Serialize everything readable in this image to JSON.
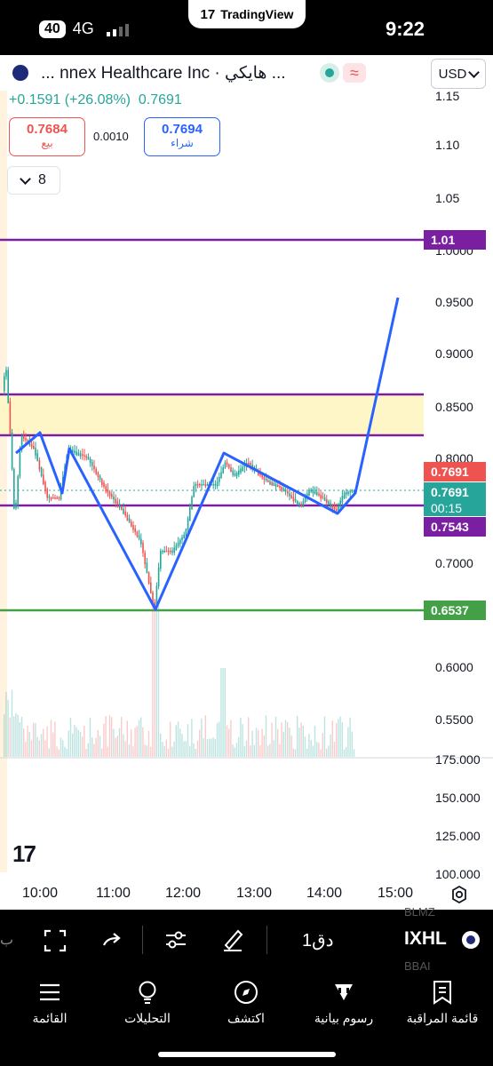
{
  "status_bar": {
    "battery": "40",
    "network": "4G",
    "time": "9:22",
    "app_pill": "TradingView"
  },
  "header": {
    "symbol_name": "... nnex Healthcare Inc · هايكي ...",
    "currency": "USD",
    "change": "+0.1591 (+26.08%)",
    "last": "0.7691"
  },
  "quote": {
    "sell_price": "0.7684",
    "sell_label": "بيع",
    "spread": "0.0010",
    "buy_price": "0.7694",
    "buy_label": "شراء"
  },
  "collapse_count": "8",
  "price_axis": {
    "labels": [
      "1.15",
      "1.10",
      "1.05",
      "1.0000",
      "0.9500",
      "0.9000",
      "0.8500",
      "0.8000",
      "0.7000",
      "0.6000",
      "0.5500"
    ],
    "volume_labels": [
      "175.000",
      "150.000",
      "125.000",
      "100.000"
    ]
  },
  "price_tags": {
    "level_top": "1.01",
    "current_red": "0.7691",
    "current_green": "0.7691",
    "countdown": "00:15",
    "level_purple": "0.7543",
    "level_green": "0.6537"
  },
  "time_axis": [
    "10:00",
    "11:00",
    "12:00",
    "13:00",
    "14:00",
    "15:00"
  ],
  "toolbar": {
    "symbol": "IXHL",
    "interval": "1دق",
    "ghost_top": "BLMZ",
    "ghost_bottom": "BBAI"
  },
  "bottom_nav": [
    {
      "label": "القائمة",
      "icon": "menu-icon"
    },
    {
      "label": "التحليلات",
      "icon": "lightbulb-icon"
    },
    {
      "label": "اكتشف",
      "icon": "compass-icon"
    },
    {
      "label": "رسوم بيانية",
      "icon": "candles-icon"
    },
    {
      "label": "قائمة المراقبة",
      "icon": "watchlist-icon"
    }
  ],
  "colors": {
    "up": "#26a69a",
    "down": "#ef5350",
    "purple": "#7b1fa2",
    "green_line": "#43a047",
    "drawing_blue": "#2962ff",
    "zone": "#fff6c7"
  }
}
